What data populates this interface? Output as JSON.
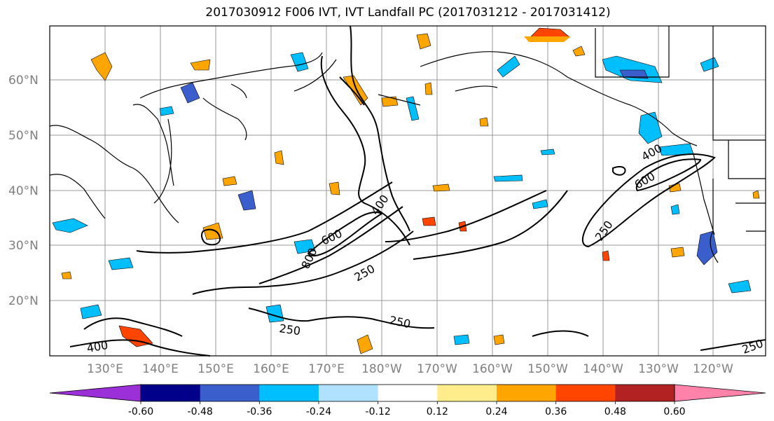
{
  "title": "2017030912 F006 IVT, IVT Landfall PC (2017031212 - 2017031412)",
  "lat_labels": [
    "60°N",
    "50°N",
    "40°N",
    "30°N",
    "20°N"
  ],
  "lon_labels": [
    "130°E",
    "140°E",
    "150°E",
    "160°E",
    "170°E",
    "180°W",
    "170°W",
    "160°W",
    "150°W",
    "140°W",
    "130°W",
    "120°W"
  ],
  "contour_labels": [
    "400",
    "600",
    "400",
    "600",
    "800",
    "250",
    "250",
    "250",
    "250",
    "400",
    "250"
  ],
  "colorbar": {
    "colors": [
      "#9b30d9",
      "#00008b",
      "#3a5fcd",
      "#00bfff",
      "#b0e2ff",
      "#ffffff",
      "#ffec8b",
      "#ffa500",
      "#ff4500",
      "#b22222",
      "#ff82ab"
    ],
    "tick_labels": [
      "-0.60",
      "-0.48",
      "-0.36",
      "-0.24",
      "-0.12",
      "0.12",
      "0.24",
      "0.36",
      "0.48",
      "0.60"
    ]
  }
}
